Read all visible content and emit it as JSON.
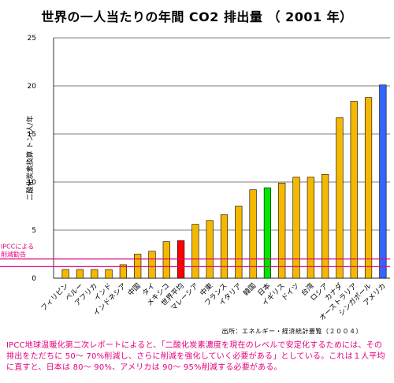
{
  "title": "世界の一人当たりの年間 CO2 排出量 （ 2001 年）",
  "source": "出所：エネルギー・経済統計要覧（２００４）",
  "footnote": "IPCC地球温暖化第二次レポートによると、「二酸化炭素濃度を現在のレベルで安定化するためには、その排出をただちに 50〜 70%削減し、さらに削減を強化していく必要がある」としている。これは１人平均に直すと、日本は 80〜 90%、アメリカは 90〜 95%削減する必要がある。",
  "colors": {
    "default_bar": "#f5b800",
    "world_avg": "#ff0000",
    "japan": "#00e600",
    "usa": "#3366ff",
    "ipcc_line": "#e4007f",
    "grid": "#000000"
  },
  "chart_data": {
    "type": "bar",
    "title": "世界の一人当たりの年間 CO2 排出量 （ 2001 年）",
    "ylabel": "二酸化炭素換算 トン/人/年",
    "ylim": [
      0,
      25
    ],
    "yticks": [
      0,
      5,
      10,
      15,
      20,
      25
    ],
    "grid": true,
    "categories": [
      "フィリピン",
      "ペルー",
      "アフリカ",
      "インド",
      "インドネシア",
      "中国",
      "タイ",
      "メキシコ",
      "世界平均",
      "マレーシア",
      "中東",
      "フランス",
      "イタリア",
      "韓国",
      "日本",
      "イギリス",
      "ドイツ",
      "台湾",
      "ロシア",
      "カナダ",
      "オーストラリア",
      "シンガポール",
      "アメリカ"
    ],
    "values": [
      0.9,
      0.9,
      0.9,
      0.9,
      1.4,
      2.5,
      2.8,
      3.8,
      3.9,
      5.6,
      6.0,
      6.6,
      7.5,
      9.2,
      9.4,
      9.9,
      10.5,
      10.5,
      10.8,
      16.7,
      18.4,
      18.8,
      20.1
    ],
    "highlight": {
      "世界平均": "world_avg",
      "日本": "japan",
      "アメリカ": "usa"
    },
    "reference_lines": [
      1.2,
      2.0
    ],
    "reference_label": [
      "IPCCによる",
      "削減勧告"
    ]
  }
}
